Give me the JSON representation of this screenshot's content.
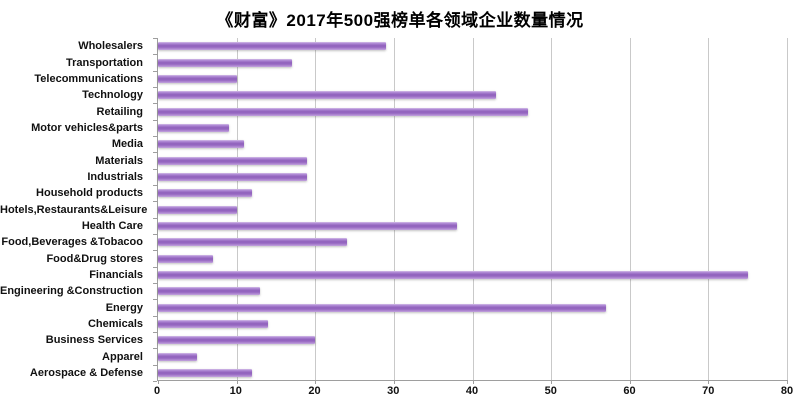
{
  "title": "《财富》2017年500强榜单各领域企业数量情况",
  "chart_data": {
    "type": "bar",
    "orientation": "horizontal",
    "title": "《财富》2017年500强榜单各领域企业数量情况",
    "categories": [
      "Wholesalers",
      "Transportation",
      "Telecommunications",
      "Technology",
      "Retailing",
      "Motor vehicles&parts",
      "Media",
      "Materials",
      "Industrials",
      "Household products",
      "Hotels,Restaurants&Leisure",
      "Health Care",
      "Food,Beverages &Tobacoo",
      "Food&Drug stores",
      "Financials",
      "Engineering &Construction",
      "Energy",
      "Chemicals",
      "Business Services",
      "Apparel",
      "Aerospace & Defense"
    ],
    "values": [
      29,
      17,
      10,
      43,
      47,
      9,
      11,
      19,
      19,
      12,
      10,
      38,
      24,
      7,
      75,
      13,
      57,
      14,
      20,
      5,
      12
    ],
    "xlabel": "",
    "ylabel": "",
    "xlim": [
      0,
      80
    ],
    "xticks": [
      0,
      10,
      20,
      30,
      40,
      50,
      60,
      70,
      80
    ],
    "grid": true,
    "legend": "none",
    "colors": {
      "bar_main": "#9a6cc4",
      "bar_highlight": "#d3bce8",
      "bar_shade": "#8f60bb",
      "gridline": "#c9c9c9",
      "axis": "#9e9e9e",
      "text": "#111111"
    }
  }
}
